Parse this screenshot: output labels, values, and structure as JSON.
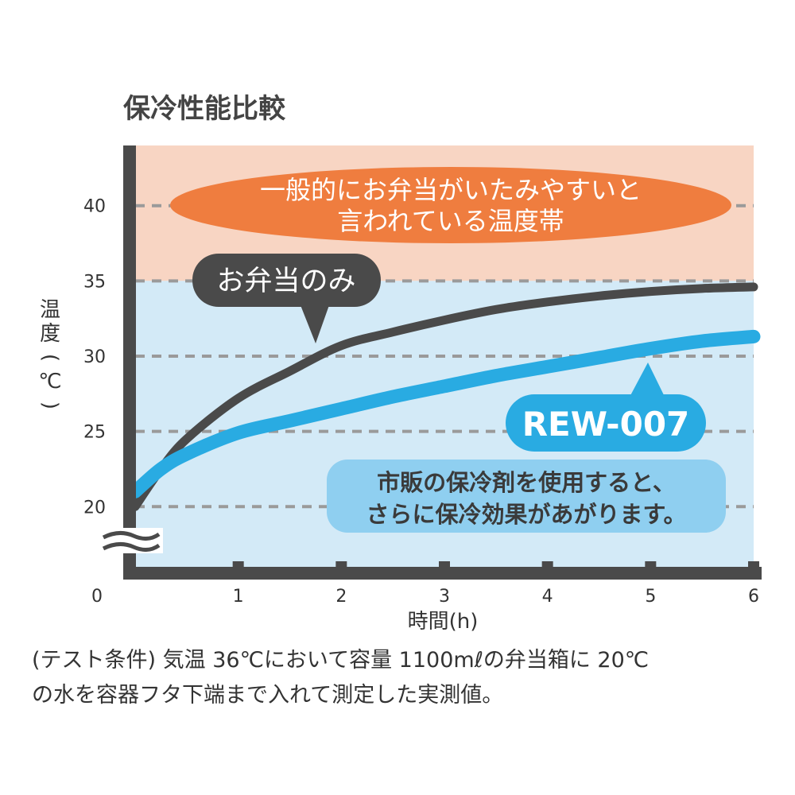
{
  "chart_data": {
    "type": "line",
    "title": "保冷性能比較",
    "xlabel": "時間(h)",
    "ylabel_chars": [
      "温",
      "度",
      "(",
      "℃",
      ")"
    ],
    "x_ticks": [
      "0",
      "1",
      "2",
      "3",
      "4",
      "5",
      "6"
    ],
    "y_ticks": [
      "20",
      "25",
      "30",
      "35",
      "40"
    ],
    "xlim": [
      0,
      6
    ],
    "ylim": [
      16,
      44
    ],
    "grid": "dashed horizontal",
    "danger_band": {
      "from": 35,
      "to": 44,
      "color": "#f8d5c3",
      "label_lines": [
        "一般的にお弁当がいたみやすいと",
        "言われている温度帯"
      ]
    },
    "safe_band_color": "#d3eaf7",
    "series": [
      {
        "name": "お弁当のみ",
        "color": "#4a4a4a",
        "x": [
          0,
          0.25,
          0.5,
          1,
          1.5,
          2,
          2.5,
          3,
          3.5,
          4,
          4.5,
          5,
          5.5,
          6
        ],
        "y": [
          20.0,
          22.5,
          24.5,
          27.2,
          29.0,
          30.7,
          31.6,
          32.4,
          33.1,
          33.6,
          34.0,
          34.3,
          34.5,
          34.6
        ]
      },
      {
        "name": "REW-007",
        "color": "#29abe2",
        "x": [
          0,
          0.25,
          0.5,
          1,
          1.5,
          2,
          2.5,
          3,
          3.5,
          4,
          4.5,
          5,
          5.5,
          6
        ],
        "y": [
          21.0,
          22.5,
          23.5,
          24.9,
          25.7,
          26.5,
          27.3,
          28.0,
          28.7,
          29.3,
          29.9,
          30.5,
          31.0,
          31.3
        ]
      }
    ],
    "annotations": {
      "plain_note_lines": [
        "市販の保冷剤を使用すると、",
        "さらに保冷効果があがります。"
      ],
      "test_conditions_lines": [
        "(テスト条件) 気温 36℃において容量 1100mℓの弁当箱に 20℃",
        "の水を容器フタ下端まで入れて測定した実測値。"
      ]
    }
  },
  "colors": {
    "axis": "#4a4a4a",
    "grid": "#9a9a9a",
    "danger_label_bg": "#ef7d3f",
    "note_bg": "#8fcff0",
    "note_text": "#3a3a3a"
  }
}
